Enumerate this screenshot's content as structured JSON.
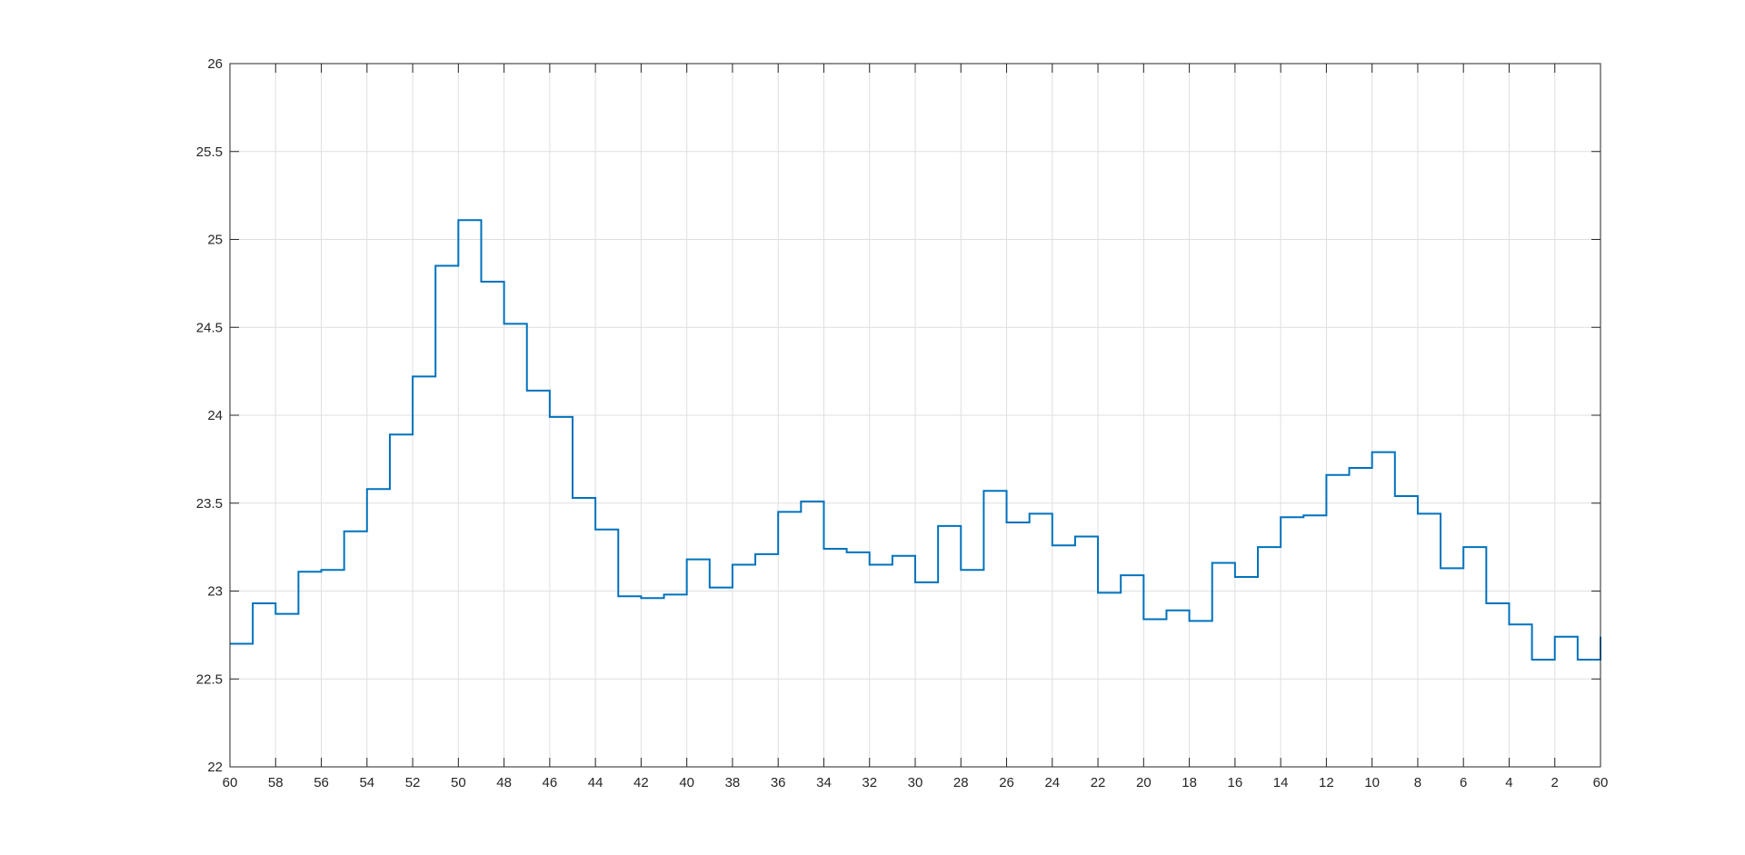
{
  "chart_data": {
    "type": "line",
    "step": true,
    "title": "",
    "xlabel": "",
    "ylabel": "",
    "grid": true,
    "xlim": [
      0,
      60
    ],
    "ylim": [
      22,
      26
    ],
    "x_tick_labels": [
      "60",
      "58",
      "56",
      "54",
      "52",
      "50",
      "48",
      "46",
      "44",
      "42",
      "40",
      "38",
      "36",
      "34",
      "32",
      "30",
      "28",
      "26",
      "24",
      "22",
      "20",
      "18",
      "16",
      "14",
      "12",
      "10",
      "8",
      "6",
      "4",
      "2",
      "60"
    ],
    "y_tick_labels": [
      "22",
      "22.5",
      "23",
      "23.5",
      "24",
      "24.5",
      "25",
      "25.5",
      "26"
    ],
    "y_ticks": [
      22,
      22.5,
      23,
      23.5,
      24,
      24.5,
      25,
      25.5,
      26
    ],
    "colors": {
      "series": "#0072bd",
      "grid": "#dfdfdf",
      "axis": "#262626"
    },
    "series": [
      {
        "name": "",
        "values": [
          22.7,
          22.93,
          22.87,
          23.11,
          23.12,
          23.34,
          23.58,
          23.89,
          24.22,
          24.85,
          25.11,
          24.76,
          24.52,
          24.14,
          23.99,
          23.53,
          23.35,
          22.97,
          22.96,
          22.98,
          23.18,
          23.02,
          23.15,
          23.21,
          23.45,
          23.51,
          23.24,
          23.22,
          23.15,
          23.2,
          23.05,
          23.37,
          23.12,
          23.57,
          23.39,
          23.44,
          23.26,
          23.31,
          22.99,
          23.09,
          22.84,
          22.89,
          22.83,
          23.16,
          23.08,
          23.25,
          23.42,
          23.43,
          23.66,
          23.7,
          23.79,
          23.54,
          23.44,
          23.13,
          23.25,
          22.93,
          22.81,
          22.61,
          22.74,
          22.61,
          22.74
        ]
      }
    ]
  }
}
